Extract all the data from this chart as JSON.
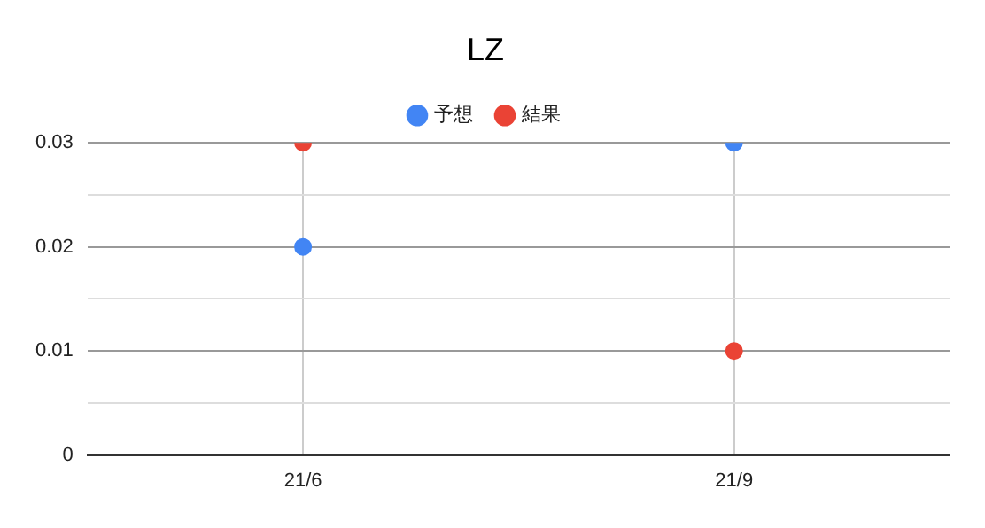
{
  "chart_data": {
    "type": "scatter",
    "title": "LZ",
    "categories": [
      "21/6",
      "21/9"
    ],
    "series": [
      {
        "name": "予想",
        "color": "#4285f4",
        "values": [
          0.02,
          0.03
        ]
      },
      {
        "name": "結果",
        "color": "#ea4335",
        "values": [
          0.03,
          0.01
        ]
      }
    ],
    "ylim": [
      0,
      0.03
    ],
    "yticks": [
      0,
      {
        "value": 0.005,
        "label": null
      },
      0.01,
      {
        "value": 0.015,
        "label": null
      },
      0.02,
      {
        "value": 0.025,
        "label": null
      },
      0.03
    ],
    "grid": true,
    "legend": "top",
    "marker": "circle"
  }
}
